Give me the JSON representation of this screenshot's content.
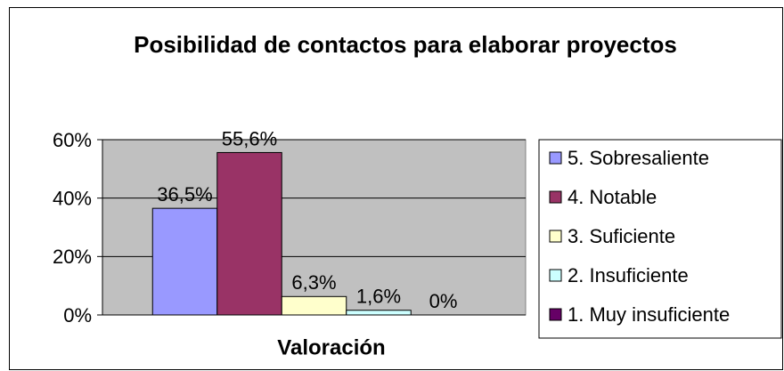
{
  "chart_data": {
    "type": "bar",
    "title": "Posibilidad de contactos para elaborar proyectos",
    "x_label": "Valoración",
    "categories": [
      null
    ],
    "series": [
      {
        "name": "5. Sobresaliente",
        "color": "#9999ff",
        "values": [
          36.5
        ],
        "value_labels": [
          "36,5%"
        ]
      },
      {
        "name": "4. Notable",
        "color": "#993366",
        "values": [
          55.6
        ],
        "value_labels": [
          "55,6%"
        ]
      },
      {
        "name": "3. Suficiente",
        "color": "#ffffcc",
        "values": [
          6.3
        ],
        "value_labels": [
          "6,3%"
        ]
      },
      {
        "name": "2. Insuficiente",
        "color": "#ccffff",
        "values": [
          1.6
        ],
        "value_labels": [
          "1,6%"
        ]
      },
      {
        "name": "1. Muy insuficiente",
        "color": "#660066",
        "values": [
          0
        ],
        "value_labels": [
          "0%"
        ]
      }
    ],
    "ylim": [
      0,
      60
    ],
    "yticks": [
      {
        "value": 0,
        "label": "0%"
      },
      {
        "value": 20,
        "label": "20%"
      },
      {
        "value": 40,
        "label": "40%"
      },
      {
        "value": 60,
        "label": "60%"
      }
    ],
    "grid": true,
    "legend": "right",
    "plot_background": "#c0c0c0"
  }
}
